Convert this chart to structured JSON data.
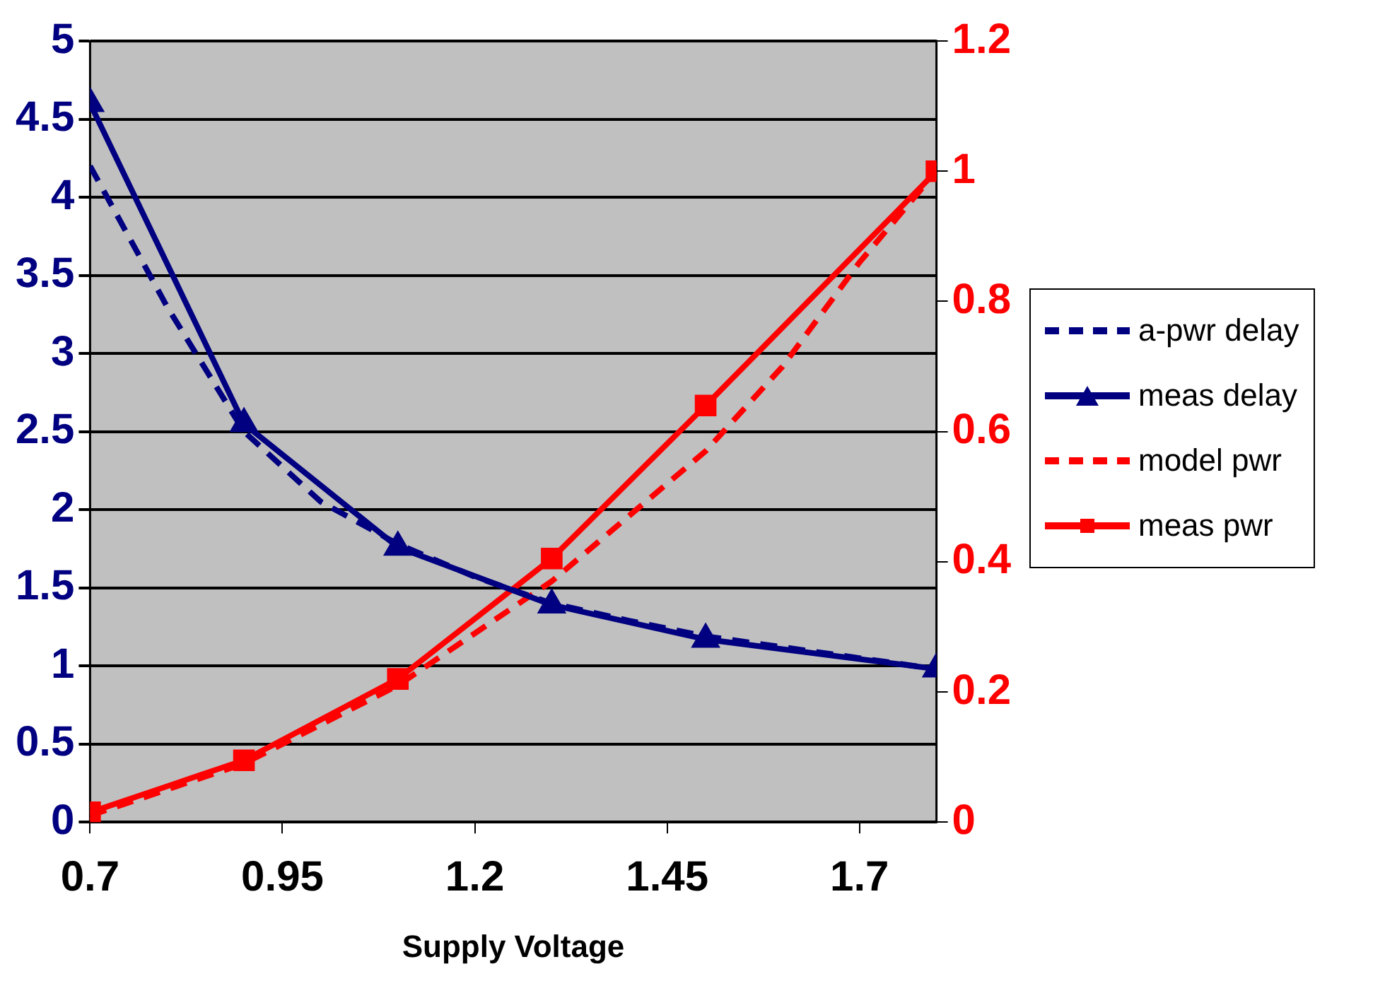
{
  "chart_data": {
    "type": "line",
    "xlabel": "Supply Voltage",
    "xlim": [
      0.7,
      1.8
    ],
    "xticks": [
      0.7,
      0.95,
      1.2,
      1.45,
      1.7
    ],
    "ylim": [
      0,
      5
    ],
    "yticks": [
      0,
      0.5,
      1,
      1.5,
      2,
      2.5,
      3,
      3.5,
      4,
      4.5,
      5
    ],
    "y2lim": [
      0,
      1.2
    ],
    "y2ticks": [
      0,
      0.2,
      0.4,
      0.6,
      0.8,
      1,
      1.2
    ],
    "grid": "y",
    "legend": "right",
    "series": [
      {
        "name": "a-pwr delay",
        "color": "#000080",
        "line_style": "dashed",
        "marker": "none",
        "x": [
          0.7,
          0.8,
          0.9,
          1.0,
          1.1,
          1.2,
          1.3,
          1.4,
          1.5,
          1.6,
          1.7,
          1.8
        ],
        "values": [
          4.2,
          3.3,
          2.5,
          2.05,
          1.78,
          1.57,
          1.4,
          1.29,
          1.19,
          1.12,
          1.05,
          0.98
        ]
      },
      {
        "name": "meas delay",
        "color": "#000080",
        "line_style": "solid",
        "marker": "triangle",
        "x": [
          0.7,
          0.9,
          1.1,
          1.3,
          1.5,
          1.8
        ],
        "values": [
          4.6,
          2.55,
          1.76,
          1.39,
          1.17,
          0.98
        ]
      },
      {
        "name": "model pwr",
        "color": "#ff0000",
        "line_style": "dashed",
        "marker": "none",
        "axis": "y2",
        "x": [
          0.7,
          0.8,
          0.9,
          1.0,
          1.1,
          1.2,
          1.3,
          1.4,
          1.5,
          1.6,
          1.7,
          1.8
        ],
        "values": [
          0.01,
          0.05,
          0.09,
          0.15,
          0.21,
          0.29,
          0.37,
          0.47,
          0.57,
          0.7,
          0.86,
          1.0
        ]
      },
      {
        "name": "meas pwr",
        "color": "#ff0000",
        "line_style": "solid",
        "marker": "square",
        "axis": "y2",
        "x": [
          0.7,
          0.9,
          1.1,
          1.3,
          1.5,
          1.8
        ],
        "values": [
          0.015,
          0.095,
          0.22,
          0.405,
          0.64,
          1.0
        ]
      }
    ]
  }
}
